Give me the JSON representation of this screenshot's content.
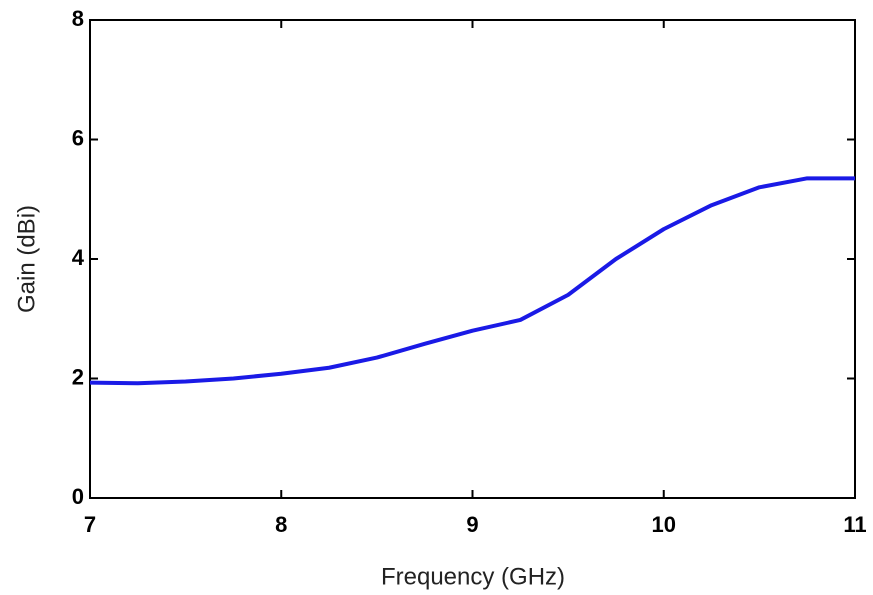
{
  "chart_data": {
    "type": "line",
    "xlabel": "Frequency (GHz)",
    "ylabel": "Gain (dBi)",
    "x": [
      7,
      7.25,
      7.5,
      7.75,
      8,
      8.25,
      8.5,
      8.75,
      9,
      9.25,
      9.5,
      9.75,
      10,
      10.25,
      10.5,
      10.75,
      11
    ],
    "series": [
      {
        "color": "#1a1ae6",
        "values": [
          1.93,
          1.92,
          1.95,
          2.0,
          2.08,
          2.18,
          2.35,
          2.58,
          2.8,
          2.98,
          3.4,
          4.0,
          4.5,
          4.9,
          5.2,
          5.35,
          5.35
        ]
      }
    ],
    "xlim": [
      7,
      11
    ],
    "xticks": [
      7,
      8,
      9,
      10,
      11
    ],
    "ylim": [
      0,
      8
    ],
    "yticks": [
      0,
      2,
      4,
      6,
      8
    ],
    "grid": false
  }
}
